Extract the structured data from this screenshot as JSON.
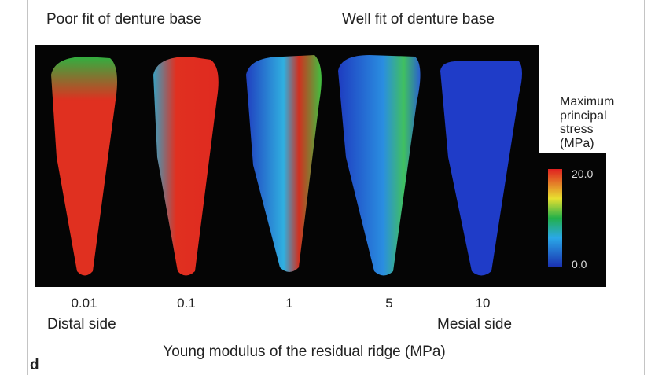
{
  "header": {
    "left": "Poor fit of denture base",
    "right": "Well fit of denture base"
  },
  "legend": {
    "title": [
      "Maximum",
      "principal",
      "stress",
      "(MPa)"
    ],
    "max": "20.0",
    "min": "0.0"
  },
  "x_axis": {
    "ticks": [
      "0.01",
      "0.1",
      "1",
      "5",
      "10"
    ],
    "left_note": "Distal side",
    "right_note": "Mesial side",
    "title": "Young modulus of the residual ridge (MPa)"
  },
  "panel_label": "d"
}
